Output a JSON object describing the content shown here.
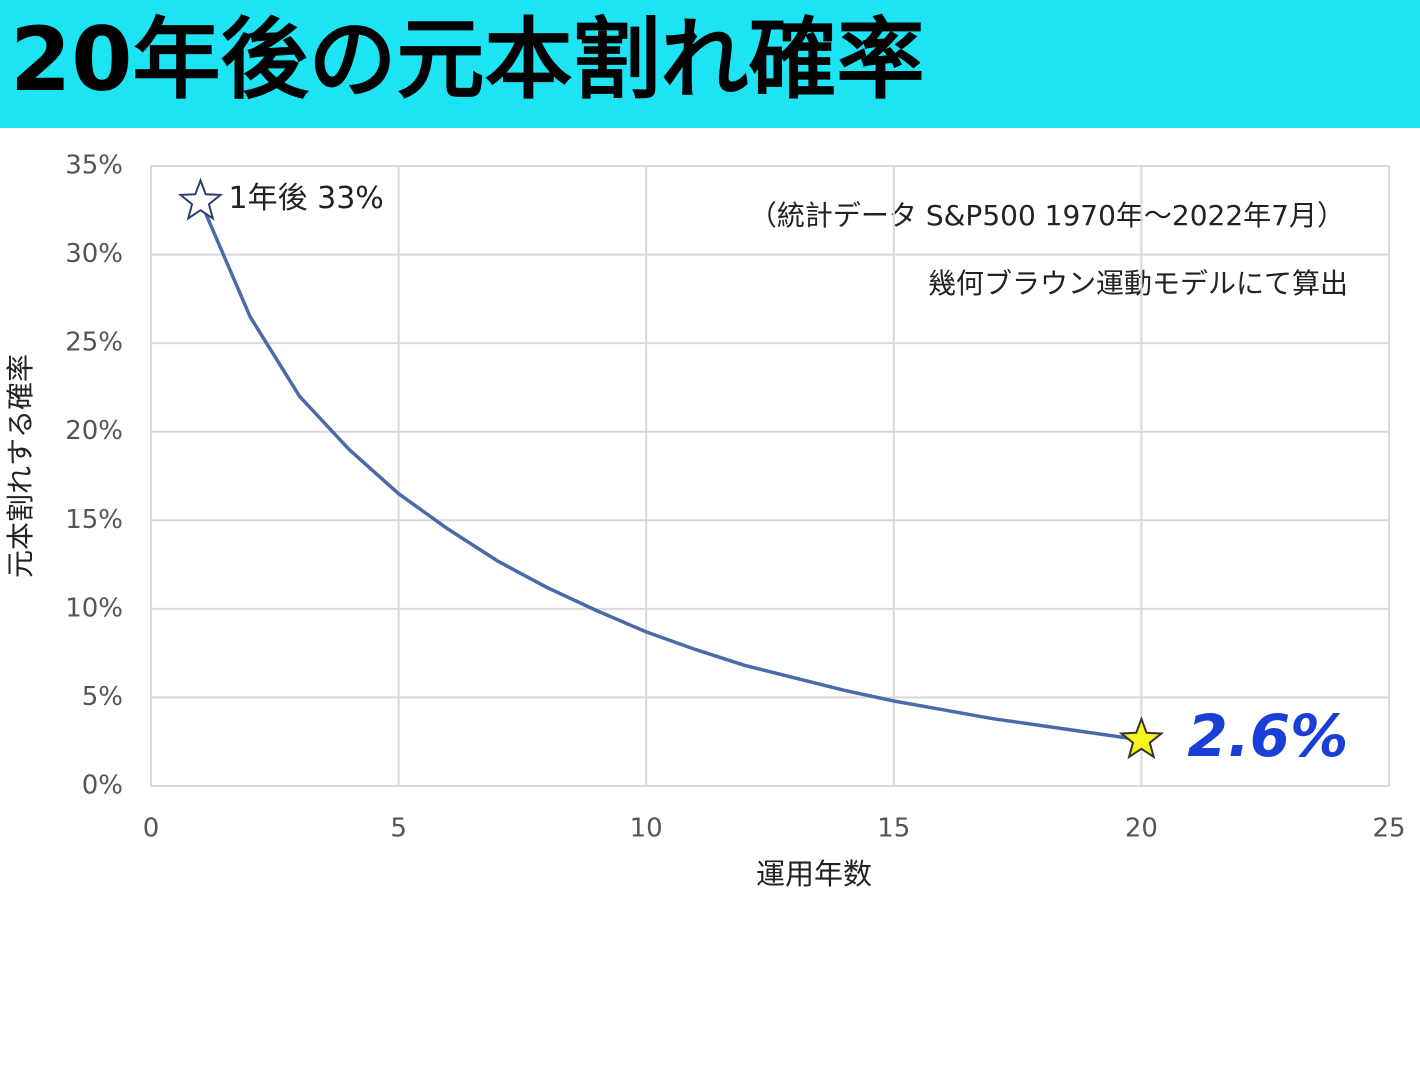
{
  "chart_data": {
    "type": "line",
    "title": "20年後の元本割れ確率",
    "x_label": "運用年数",
    "y_label": "元本割れする確率",
    "notes": [
      "（統計データ S&P500 1970年～2022年7月）",
      "幾何ブラウン運動モデルにて算出"
    ],
    "start_label": "1年後 33%",
    "end_label": "2.6%",
    "x": [
      1,
      2,
      3,
      4,
      5,
      6,
      7,
      8,
      9,
      10,
      11,
      12,
      13,
      14,
      15,
      16,
      17,
      18,
      19,
      20
    ],
    "series": [
      {
        "color": "#4a6aa8",
        "values": [
          33,
          26.5,
          22,
          19,
          16.5,
          14.5,
          12.7,
          11.2,
          9.9,
          8.7,
          7.7,
          6.8,
          6.1,
          5.4,
          4.8,
          4.3,
          3.8,
          3.4,
          3.0,
          2.6
        ]
      }
    ],
    "xlim": [
      0,
      25
    ],
    "xticks": [
      0,
      5,
      10,
      15,
      20,
      25
    ],
    "ylim": [
      0,
      35
    ],
    "yticks": [
      {
        "value": 0,
        "label": "0%"
      },
      {
        "value": 5,
        "label": "5%"
      },
      {
        "value": 10,
        "label": "10%"
      },
      {
        "value": 15,
        "label": "15%"
      },
      {
        "value": 20,
        "label": "20%"
      },
      {
        "value": 25,
        "label": "25%"
      },
      {
        "value": 30,
        "label": "30%"
      },
      {
        "value": 35,
        "label": "35%"
      }
    ],
    "grid": true
  }
}
